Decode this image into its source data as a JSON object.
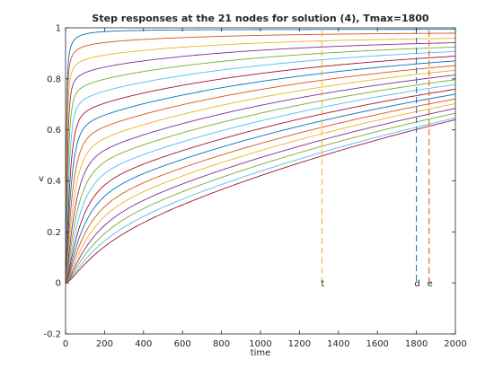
{
  "chart_data": {
    "type": "line",
    "title": "Step responses at the 21 nodes for solution (4), Tmax=1800",
    "xlabel": "time",
    "ylabel": "v",
    "xlim": [
      0,
      2000
    ],
    "ylim": [
      -0.2,
      1
    ],
    "xticks": [
      "0",
      "200",
      "400",
      "600",
      "800",
      "1000",
      "1200",
      "1400",
      "1600",
      "1800",
      "2000"
    ],
    "yticks": [
      "-0.2",
      "0",
      "0.2",
      "0.4",
      "0.6",
      "0.8",
      "1"
    ],
    "grid": false,
    "legend": "none",
    "line_colors": [
      "#0072BD",
      "#D95319",
      "#EDB120",
      "#7E2F8E",
      "#77AC30",
      "#4DBEEE",
      "#A2142F"
    ],
    "node_count": 21,
    "series_end_values": [
      0.995,
      0.98,
      0.96,
      0.943,
      0.926,
      0.909,
      0.891,
      0.873,
      0.855,
      0.837,
      0.819,
      0.801,
      0.783,
      0.765,
      0.746,
      0.728,
      0.71,
      0.692,
      0.674,
      0.656,
      0.65
    ],
    "markers": [
      {
        "label": "t",
        "x": 1315,
        "y_top": 0.99,
        "color": "#EDB120"
      },
      {
        "label": "d",
        "x": 1800,
        "y_top": 1.0,
        "color": "#0072BD"
      },
      {
        "label": "e",
        "x": 1865,
        "y_top": 0.99,
        "color": "#D95319"
      }
    ]
  }
}
